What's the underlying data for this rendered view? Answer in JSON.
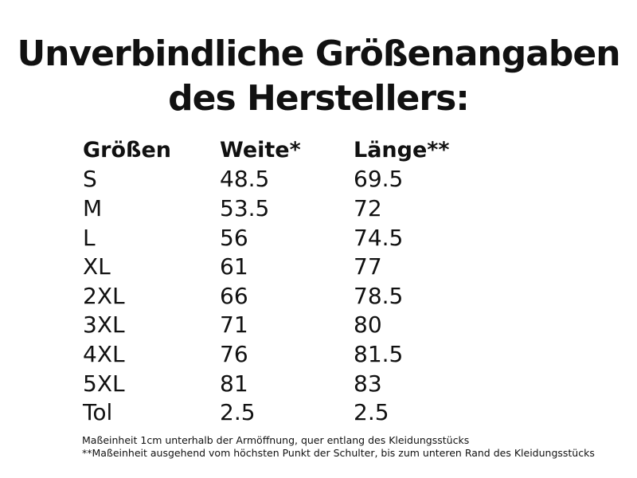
{
  "title": [
    "Unverbindliche Größenangaben",
    "des Herstellers:"
  ],
  "table": {
    "header": [
      "Größen",
      "Weite*",
      "Länge**"
    ],
    "rows": [
      [
        "S",
        "48.5",
        "69.5"
      ],
      [
        "M",
        "53.5",
        "72"
      ],
      [
        "L",
        "56",
        "74.5"
      ],
      [
        "XL",
        "61",
        "77"
      ],
      [
        "2XL",
        "66",
        "78.5"
      ],
      [
        "3XL",
        "71",
        "80"
      ],
      [
        "4XL",
        "76",
        "81.5"
      ],
      [
        "5XL",
        "81",
        "83"
      ],
      [
        "Tol",
        "2.5",
        "2.5"
      ]
    ]
  },
  "footnotes": [
    "Maßeinheit 1cm unterhalb der Armöffnung, quer entlang des Kleidungsstücks",
    "**Maßeinheit ausgehend vom höchsten Punkt der Schulter, bis zum unteren Rand des Kleidungsstücks"
  ]
}
